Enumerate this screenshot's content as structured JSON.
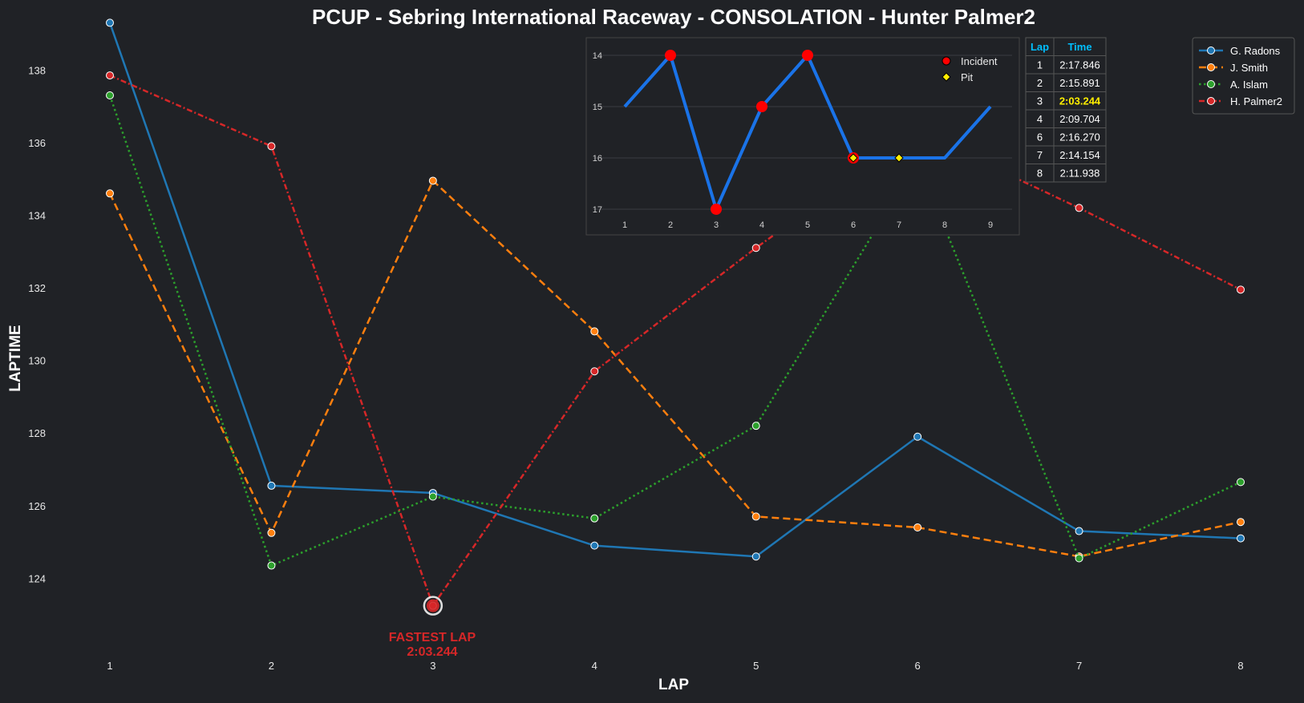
{
  "chart_data": [
    {
      "type": "line",
      "title": "PCUP - Sebring International Raceway - CONSOLATION - Hunter Palmer2",
      "xlabel": "LAP",
      "ylabel": "LAPTIME",
      "x": [
        1,
        2,
        3,
        4,
        5,
        6,
        7,
        8
      ],
      "ylim": [
        122,
        139
      ],
      "yticks": [
        124,
        126,
        128,
        130,
        132,
        134,
        136,
        138
      ],
      "grid": false,
      "legend": "top-right",
      "series": [
        {
          "name": "G. Radons",
          "color": "#1f77b4",
          "dash": "solid",
          "values": [
            139.3,
            126.55,
            126.35,
            124.9,
            124.6,
            127.9,
            125.3,
            125.1
          ]
        },
        {
          "name": "J. Smith",
          "color": "#ff7f0e",
          "dash": "dashed",
          "values": [
            134.6,
            125.25,
            134.95,
            130.8,
            125.7,
            125.4,
            124.6,
            125.55
          ]
        },
        {
          "name": "A. Islam",
          "color": "#2ca02c",
          "dash": "dotted",
          "values": [
            137.3,
            124.35,
            126.25,
            125.65,
            128.2,
            135.5,
            124.55,
            126.65
          ]
        },
        {
          "name": "H. Palmer2",
          "color": "#d62728",
          "dash": "dashdot",
          "values": [
            137.85,
            135.9,
            123.244,
            129.7,
            133.1,
            136.3,
            134.2,
            131.95
          ]
        }
      ],
      "annotation": {
        "line1": "FASTEST LAP",
        "line2": "2:03.244",
        "x": 3,
        "y": 123.244,
        "color": "#d62728"
      }
    },
    {
      "type": "line",
      "x": [
        1,
        2,
        3,
        4,
        5,
        6,
        7,
        8,
        9
      ],
      "values": [
        15,
        14,
        17,
        15,
        14,
        16,
        16,
        16,
        15
      ],
      "ylim": [
        17.3,
        13.7
      ],
      "yticks": [
        14,
        15,
        16,
        17
      ],
      "y_inverted": true,
      "color": "#1a73e8",
      "incidents": [
        2,
        3,
        4,
        5,
        6
      ],
      "pits": [
        6,
        7
      ],
      "legend": [
        {
          "label": "Incident",
          "color": "#ff0000"
        },
        {
          "label": "Pit",
          "color": "#ffee00"
        }
      ]
    },
    {
      "type": "table",
      "columns": [
        "Lap",
        "Time"
      ],
      "rows": [
        [
          "1",
          "2:17.846"
        ],
        [
          "2",
          "2:15.891"
        ],
        [
          "3",
          "2:03.244"
        ],
        [
          "4",
          "2:09.704"
        ],
        [
          "6",
          "2:16.270"
        ],
        [
          "7",
          "2:14.154"
        ],
        [
          "8",
          "2:11.938"
        ]
      ],
      "highlight_row": 2,
      "header_color": "#00bfff",
      "highlight_color": "#ffee00"
    }
  ]
}
